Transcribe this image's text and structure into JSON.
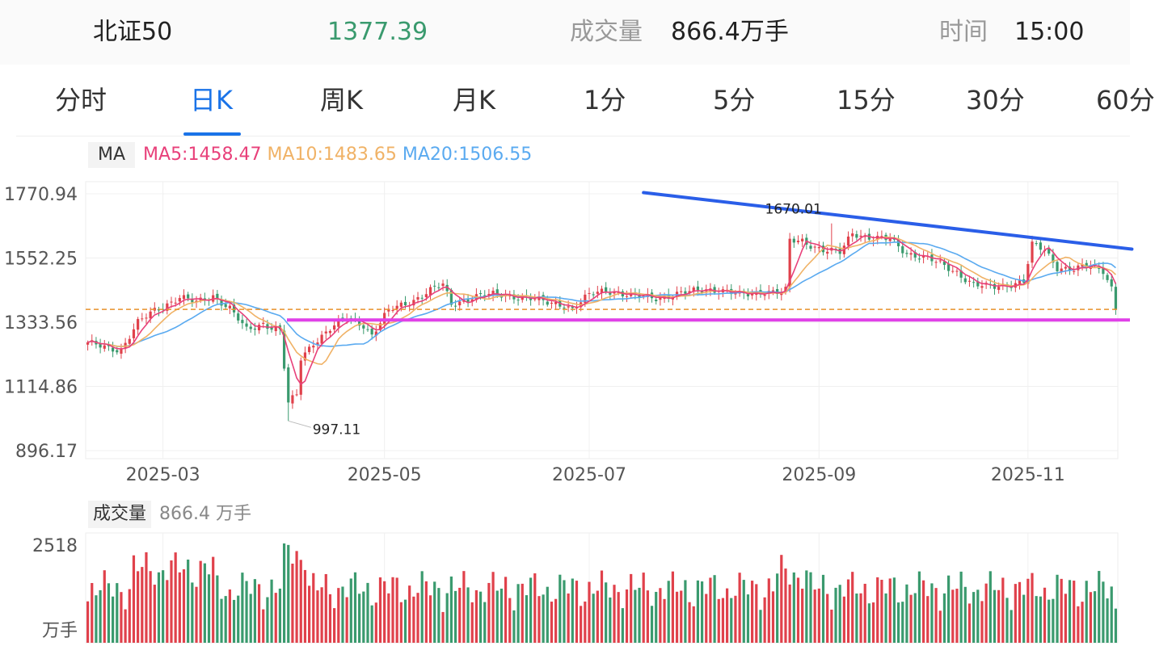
{
  "header": {
    "name": "北证50",
    "price": "1377.39",
    "volume_label": "成交量",
    "volume_value": "866.4万手",
    "time_label": "时间",
    "time_value": "15:00"
  },
  "tabs": [
    {
      "label": "分时",
      "active": false
    },
    {
      "label": "日K",
      "active": true
    },
    {
      "label": "周K",
      "active": false
    },
    {
      "label": "月K",
      "active": false
    },
    {
      "label": "1分",
      "active": false
    },
    {
      "label": "5分",
      "active": false
    },
    {
      "label": "15分",
      "active": false
    },
    {
      "label": "30分",
      "active": false
    },
    {
      "label": "60分",
      "active": false
    }
  ],
  "indicator": {
    "tag": "MA",
    "ma5": "MA5:1458.47",
    "ma10": "MA10:1483.65",
    "ma20": "MA20:1506.55"
  },
  "volume_panel": {
    "tag": "成交量",
    "value": "866.4 万手",
    "y_top_label": "2518",
    "y_unit_label": "万手"
  },
  "colors": {
    "up": "#e0414b",
    "down": "#3a9a6e",
    "ma5": "#e8407a",
    "ma10": "#f0b266",
    "ma20": "#5aaaf0",
    "accent": "#1a73e8",
    "price": "#3a9a6e",
    "trendline_down": "#2a5ee8",
    "support_line": "#e040e8",
    "last_price_line": "#e8902a"
  },
  "chart_data": {
    "type": "candlestick",
    "y_ticks": [
      "1770.94",
      "1552.25",
      "1333.56",
      "1114.86",
      "896.17"
    ],
    "ylim": [
      896.17,
      1770.94
    ],
    "x_ticks": [
      {
        "label": "2025-03",
        "index": 18
      },
      {
        "label": "2025-05",
        "index": 71
      },
      {
        "label": "2025-07",
        "index": 120
      },
      {
        "label": "2025-09",
        "index": 175
      },
      {
        "label": "2025-11",
        "index": 225
      }
    ],
    "annotations": [
      {
        "text": "1670.01",
        "type": "high",
        "index": 178,
        "value": 1670.01
      },
      {
        "text": "997.11",
        "type": "low",
        "index": 48,
        "value": 997.11
      }
    ],
    "last_price": 1377.39,
    "support_level": 1341,
    "trendline": [
      {
        "index": 133,
        "value": 1775
      },
      {
        "index": 246,
        "value": 1577
      }
    ],
    "ma_last": {
      "ma5": 1458.47,
      "ma10": 1483.65,
      "ma20": 1506.55
    },
    "volume": {
      "ylim": [
        0,
        2518
      ],
      "last": 866.4,
      "unit": "万手"
    },
    "anchors": [
      {
        "index": 0,
        "value": 1260
      },
      {
        "index": 8,
        "value": 1240
      },
      {
        "index": 12,
        "value": 1330
      },
      {
        "index": 16,
        "value": 1375
      },
      {
        "index": 22,
        "value": 1418
      },
      {
        "index": 26,
        "value": 1400
      },
      {
        "index": 30,
        "value": 1425
      },
      {
        "index": 34,
        "value": 1380
      },
      {
        "index": 38,
        "value": 1305
      },
      {
        "index": 42,
        "value": 1330
      },
      {
        "index": 46,
        "value": 1305
      },
      {
        "index": 48,
        "value": 1055
      },
      {
        "index": 50,
        "value": 1085
      },
      {
        "index": 51,
        "value": 1210
      },
      {
        "index": 54,
        "value": 1265
      },
      {
        "index": 58,
        "value": 1310
      },
      {
        "index": 62,
        "value": 1350
      },
      {
        "index": 66,
        "value": 1325
      },
      {
        "index": 68,
        "value": 1290
      },
      {
        "index": 72,
        "value": 1372
      },
      {
        "index": 78,
        "value": 1410
      },
      {
        "index": 83,
        "value": 1450
      },
      {
        "index": 85,
        "value": 1460
      },
      {
        "index": 87,
        "value": 1395
      },
      {
        "index": 92,
        "value": 1420
      },
      {
        "index": 98,
        "value": 1428
      },
      {
        "index": 104,
        "value": 1420
      },
      {
        "index": 110,
        "value": 1400
      },
      {
        "index": 114,
        "value": 1395
      },
      {
        "index": 116,
        "value": 1378
      },
      {
        "index": 120,
        "value": 1425
      },
      {
        "index": 124,
        "value": 1445
      },
      {
        "index": 130,
        "value": 1422
      },
      {
        "index": 136,
        "value": 1418
      },
      {
        "index": 142,
        "value": 1430
      },
      {
        "index": 148,
        "value": 1448
      },
      {
        "index": 152,
        "value": 1440
      },
      {
        "index": 156,
        "value": 1425
      },
      {
        "index": 162,
        "value": 1440
      },
      {
        "index": 166,
        "value": 1432
      },
      {
        "index": 167,
        "value": 1440
      },
      {
        "index": 168,
        "value": 1610
      },
      {
        "index": 171,
        "value": 1612
      },
      {
        "index": 176,
        "value": 1578
      },
      {
        "index": 180,
        "value": 1570
      },
      {
        "index": 183,
        "value": 1640
      },
      {
        "index": 188,
        "value": 1618
      },
      {
        "index": 192,
        "value": 1615
      },
      {
        "index": 196,
        "value": 1570
      },
      {
        "index": 200,
        "value": 1555
      },
      {
        "index": 205,
        "value": 1525
      },
      {
        "index": 208,
        "value": 1505
      },
      {
        "index": 212,
        "value": 1460
      },
      {
        "index": 216,
        "value": 1452
      },
      {
        "index": 220,
        "value": 1462
      },
      {
        "index": 224,
        "value": 1472
      },
      {
        "index": 226,
        "value": 1595
      },
      {
        "index": 229,
        "value": 1580
      },
      {
        "index": 232,
        "value": 1522
      },
      {
        "index": 236,
        "value": 1512
      },
      {
        "index": 240,
        "value": 1526
      },
      {
        "index": 243,
        "value": 1512
      },
      {
        "index": 245,
        "value": 1452
      },
      {
        "index": 246,
        "value": 1377.39
      }
    ],
    "count": 247
  }
}
